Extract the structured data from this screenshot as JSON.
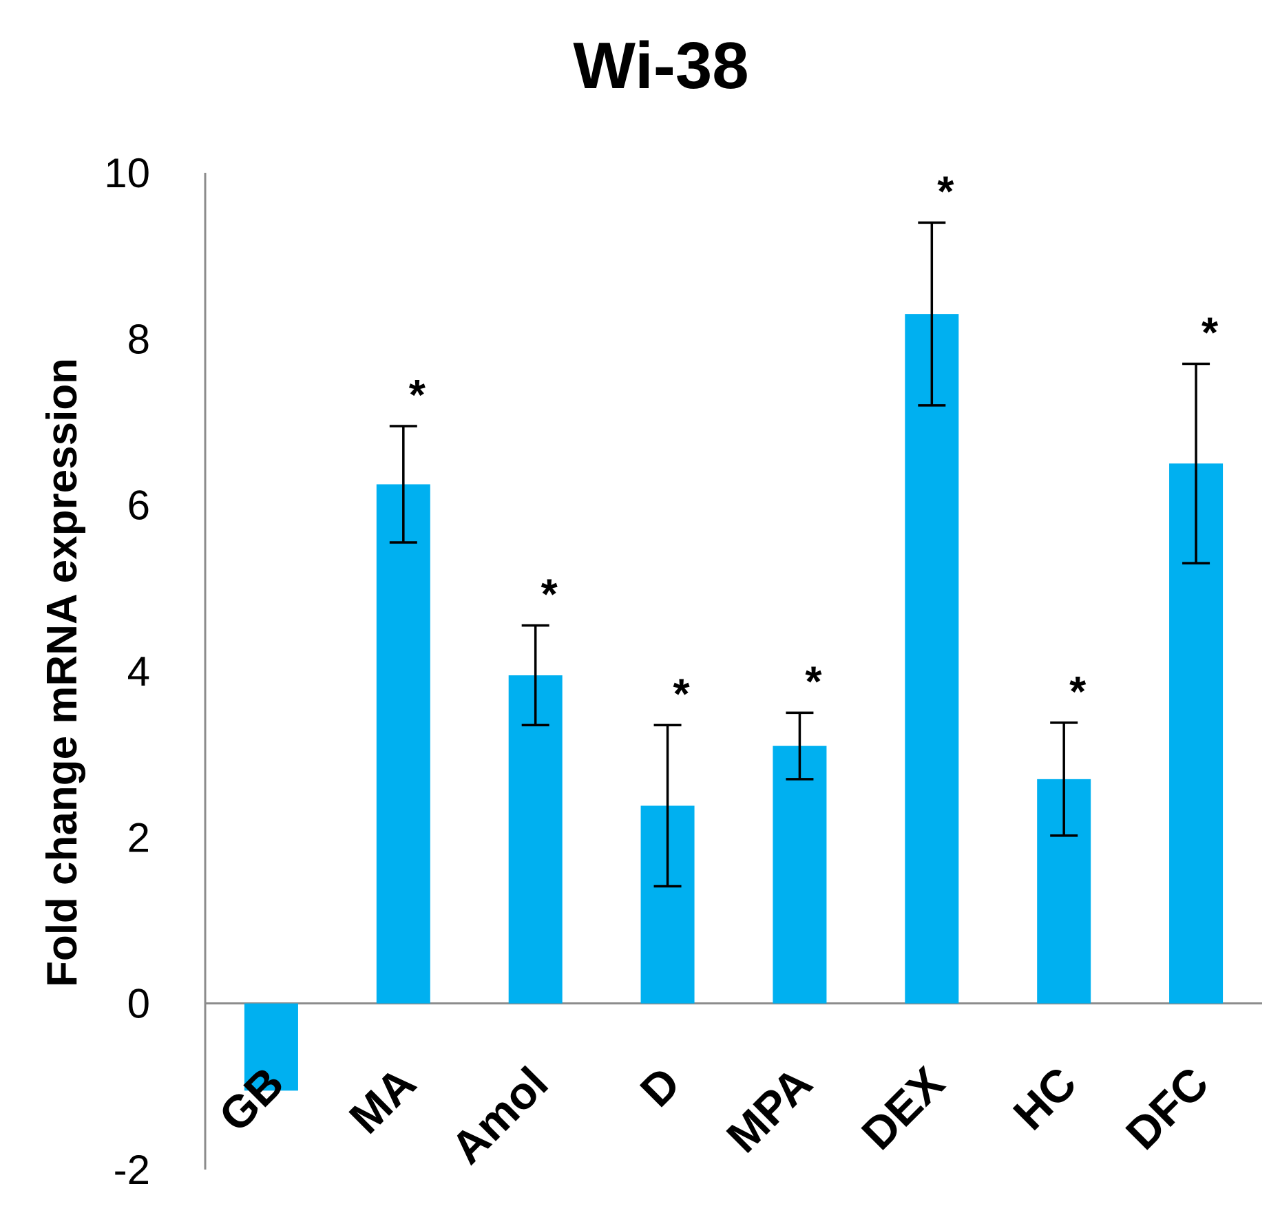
{
  "chart_data": {
    "type": "bar",
    "title": "Wi-38",
    "xlabel": "",
    "ylabel": "Fold change mRNA expression",
    "ylim": [
      -2,
      10
    ],
    "yticks": [
      "-2",
      "0",
      "2",
      "4",
      "6",
      "8",
      "10"
    ],
    "ytick_values": [
      -2,
      0,
      2,
      4,
      6,
      8,
      10
    ],
    "categories": [
      "GB",
      "MA",
      "Amol",
      "D",
      "MPA",
      "DEX",
      "HC",
      "DFC"
    ],
    "values": [
      -1.05,
      6.25,
      3.95,
      2.38,
      3.1,
      8.3,
      2.7,
      6.5
    ],
    "error": [
      null,
      0.7,
      0.6,
      0.97,
      0.4,
      1.1,
      0.68,
      1.2
    ],
    "significance": [
      "",
      "*",
      "*",
      "*",
      "*",
      "*",
      "*",
      "*"
    ],
    "bar_color": "#00b0f0",
    "axis_color": "#8c8c8c",
    "grid": false,
    "legend": "none"
  }
}
